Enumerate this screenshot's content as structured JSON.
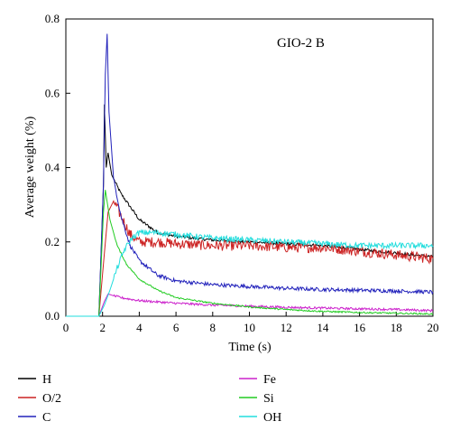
{
  "chart_data": {
    "type": "line",
    "title": "",
    "annotation": "GIO-2 B",
    "xlabel": "Time (s)",
    "ylabel": "Average weight (%)",
    "xlim": [
      0,
      20
    ],
    "ylim": [
      0,
      0.8
    ],
    "xticks": [
      0,
      2,
      4,
      6,
      8,
      10,
      12,
      14,
      16,
      18,
      20
    ],
    "yticks": [
      0.0,
      0.2,
      0.4,
      0.6,
      0.8
    ],
    "ytick_labels": [
      "0.0",
      "0.2",
      "0.4",
      "0.6",
      "0.8"
    ],
    "grid": false,
    "legend_position": "bottom",
    "series": [
      {
        "name": "H",
        "color": "#000000",
        "points": [
          [
            0,
            0
          ],
          [
            1.8,
            0
          ],
          [
            2.05,
            0.35
          ],
          [
            2.1,
            0.57
          ],
          [
            2.2,
            0.4
          ],
          [
            2.3,
            0.44
          ],
          [
            2.5,
            0.38
          ],
          [
            3,
            0.33
          ],
          [
            4,
            0.26
          ],
          [
            5,
            0.225
          ],
          [
            6,
            0.215
          ],
          [
            8,
            0.205
          ],
          [
            10,
            0.2
          ],
          [
            12,
            0.195
          ],
          [
            14,
            0.19
          ],
          [
            16,
            0.18
          ],
          [
            18,
            0.17
          ],
          [
            20,
            0.16
          ]
        ]
      },
      {
        "name": "O/2",
        "color": "#cc2222",
        "points": [
          [
            0,
            0
          ],
          [
            1.8,
            0
          ],
          [
            2.1,
            0.17
          ],
          [
            2.3,
            0.28
          ],
          [
            2.6,
            0.31
          ],
          [
            3,
            0.27
          ],
          [
            3.5,
            0.22
          ],
          [
            4,
            0.2
          ],
          [
            5,
            0.2
          ],
          [
            6,
            0.195
          ],
          [
            8,
            0.19
          ],
          [
            10,
            0.19
          ],
          [
            12,
            0.185
          ],
          [
            14,
            0.185
          ],
          [
            16,
            0.175
          ],
          [
            18,
            0.165
          ],
          [
            20,
            0.155
          ]
        ]
      },
      {
        "name": "C",
        "color": "#2222bb",
        "points": [
          [
            0,
            0
          ],
          [
            1.8,
            0
          ],
          [
            2.05,
            0.36
          ],
          [
            2.15,
            0.65
          ],
          [
            2.25,
            0.76
          ],
          [
            2.35,
            0.55
          ],
          [
            2.6,
            0.37
          ],
          [
            3,
            0.27
          ],
          [
            3.5,
            0.19
          ],
          [
            4,
            0.15
          ],
          [
            5,
            0.11
          ],
          [
            6,
            0.095
          ],
          [
            8,
            0.085
          ],
          [
            10,
            0.08
          ],
          [
            12,
            0.075
          ],
          [
            14,
            0.072
          ],
          [
            16,
            0.07
          ],
          [
            18,
            0.068
          ],
          [
            20,
            0.065
          ]
        ]
      },
      {
        "name": "Fe",
        "color": "#cc22cc",
        "points": [
          [
            0,
            0
          ],
          [
            1.8,
            0
          ],
          [
            2.1,
            0.04
          ],
          [
            2.3,
            0.06
          ],
          [
            2.6,
            0.055
          ],
          [
            3,
            0.05
          ],
          [
            4,
            0.042
          ],
          [
            6,
            0.035
          ],
          [
            8,
            0.03
          ],
          [
            10,
            0.027
          ],
          [
            12,
            0.024
          ],
          [
            14,
            0.022
          ],
          [
            16,
            0.02
          ],
          [
            18,
            0.018
          ],
          [
            20,
            0.015
          ]
        ]
      },
      {
        "name": "Si",
        "color": "#22cc22",
        "points": [
          [
            0,
            0
          ],
          [
            1.8,
            0
          ],
          [
            2.05,
            0.28
          ],
          [
            2.15,
            0.34
          ],
          [
            2.4,
            0.26
          ],
          [
            2.8,
            0.19
          ],
          [
            3.3,
            0.14
          ],
          [
            4,
            0.1
          ],
          [
            5,
            0.07
          ],
          [
            6,
            0.05
          ],
          [
            8,
            0.035
          ],
          [
            10,
            0.025
          ],
          [
            12,
            0.018
          ],
          [
            14,
            0.013
          ],
          [
            16,
            0.01
          ],
          [
            18,
            0.008
          ],
          [
            20,
            0.006
          ]
        ]
      },
      {
        "name": "OH",
        "color": "#22dddd",
        "points": [
          [
            0,
            0
          ],
          [
            1.8,
            0
          ],
          [
            2.1,
            0.03
          ],
          [
            2.4,
            0.07
          ],
          [
            2.8,
            0.13
          ],
          [
            3.2,
            0.18
          ],
          [
            3.6,
            0.21
          ],
          [
            4,
            0.225
          ],
          [
            5,
            0.225
          ],
          [
            6,
            0.22
          ],
          [
            8,
            0.21
          ],
          [
            10,
            0.205
          ],
          [
            12,
            0.2
          ],
          [
            14,
            0.195
          ],
          [
            16,
            0.19
          ],
          [
            18,
            0.19
          ],
          [
            20,
            0.19
          ]
        ]
      }
    ]
  }
}
